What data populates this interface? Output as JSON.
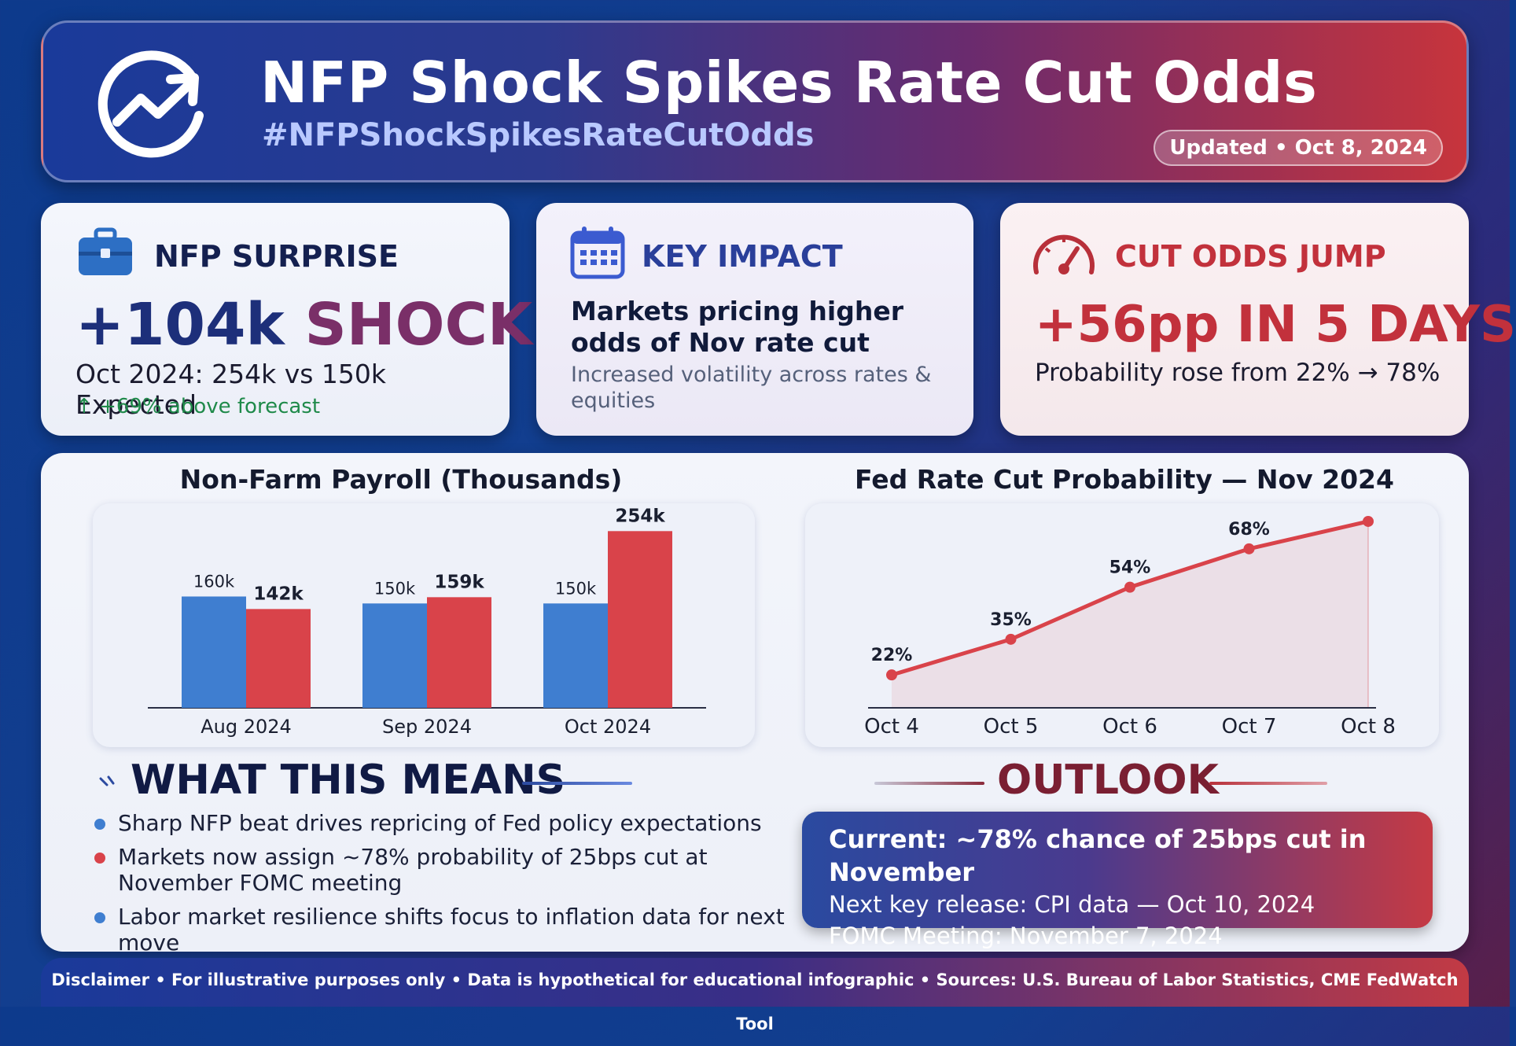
{
  "header": {
    "title": "NFP Shock Spikes Rate Cut Odds",
    "hashtag": "#NFPShockSpikesRateCutOdds",
    "updated": "Updated • Oct 8, 2024"
  },
  "cards": {
    "nfp": {
      "heading": "NFP SURPRISE",
      "big_value": "+104k",
      "big_word": "SHOCK",
      "line": "Oct 2024: 254k vs 150k Expected",
      "note": "+69% above forecast"
    },
    "impact": {
      "heading": "KEY IMPACT",
      "main": "Markets pricing higher odds of Nov rate cut",
      "sub": "Increased volatility across rates & equities"
    },
    "odds": {
      "heading": "CUT ODDS JUMP",
      "big": "+56pp IN 5 DAYS",
      "line": "Probability rose from 22% → 78%"
    }
  },
  "colors": {
    "blue": "#3f7ed0",
    "red": "#d9434a",
    "navy": "#1d2f7a",
    "purple": "#8a3a6a"
  },
  "chart_data": [
    {
      "type": "bar",
      "title": "Non-Farm Payroll (Thousands)",
      "categories": [
        "Aug 2024",
        "Sep 2024",
        "Oct 2024"
      ],
      "series": [
        {
          "values": [
            160,
            150,
            150
          ],
          "labels": [
            "160k",
            "150k",
            "150k"
          ]
        },
        {
          "values": [
            142,
            159,
            254
          ],
          "labels": [
            "142k",
            "159k",
            "254k"
          ]
        }
      ],
      "ylim": [
        0,
        260
      ]
    },
    {
      "type": "line",
      "title": "Fed Rate Cut Probability — Nov 2024",
      "x": [
        "Oct 4",
        "Oct 5",
        "Oct 6",
        "Oct 7",
        "Oct 8"
      ],
      "values": [
        22,
        35,
        54,
        68,
        78
      ],
      "labels": [
        "22%",
        "35%",
        "54%",
        "68%",
        ""
      ],
      "ylim": [
        10,
        80
      ]
    }
  ],
  "what_this_means": {
    "heading": "WHAT THIS MEANS",
    "items": [
      "Sharp NFP beat drives repricing of Fed policy expectations",
      "Markets now assign ~78% probability of 25bps cut at November FOMC meeting",
      "Labor market resilience shifts focus to inflation data for next move"
    ]
  },
  "outlook": {
    "heading": "OUTLOOK",
    "line1": "Current: ~78% chance of 25bps cut in November",
    "line2": "Next key release: CPI data — Oct 10, 2024",
    "line3": "FOMC Meeting: November 7, 2024"
  },
  "footer": {
    "text": "Disclaimer • For illustrative purposes only • Data is hypothetical for educational infographic • Sources: U.S. Bureau of Labor Statistics, CME FedWatch Tool"
  }
}
